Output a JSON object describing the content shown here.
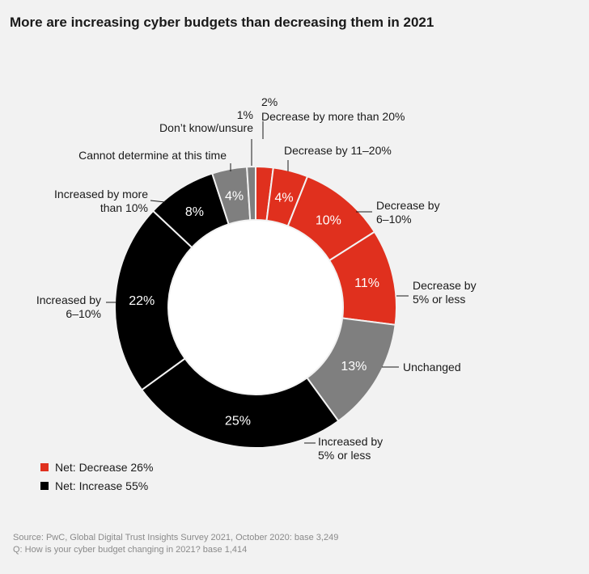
{
  "title": "More are increasing cyber budgets than decreasing them in 2021",
  "chart_data": {
    "type": "donut",
    "unit": "%",
    "slices": [
      {
        "value_label": "2%",
        "value": 2,
        "color": "#e0301e",
        "label_lines": [
          "2%",
          "Decrease by more than 20%"
        ],
        "show_value_in_slice": false
      },
      {
        "value_label": "4%",
        "value": 4,
        "color": "#e0301e",
        "label_lines": [
          "Decrease by 11–20%"
        ],
        "show_value_in_slice": true
      },
      {
        "value_label": "10%",
        "value": 10,
        "color": "#e0301e",
        "label_lines": [
          "Decrease by",
          "6–10%"
        ],
        "show_value_in_slice": true
      },
      {
        "value_label": "11%",
        "value": 11,
        "color": "#e0301e",
        "label_lines": [
          "Decrease by",
          "5% or less"
        ],
        "show_value_in_slice": true
      },
      {
        "value_label": "13%",
        "value": 13,
        "color": "#7f7f7f",
        "label_lines": [
          "Unchanged"
        ],
        "show_value_in_slice": true
      },
      {
        "value_label": "25%",
        "value": 25,
        "color": "#000000",
        "label_lines": [
          "Increased by",
          "5% or less"
        ],
        "show_value_in_slice": true
      },
      {
        "value_label": "22%",
        "value": 22,
        "color": "#000000",
        "label_lines": [
          "Increased by",
          "6–10%"
        ],
        "show_value_in_slice": true
      },
      {
        "value_label": "8%",
        "value": 8,
        "color": "#000000",
        "label_lines": [
          "Increased by more",
          "than 10%"
        ],
        "show_value_in_slice": true
      },
      {
        "value_label": "4%",
        "value": 4,
        "color": "#7f7f7f",
        "label_lines": [
          "Cannot determine at this time"
        ],
        "show_value_in_slice": true
      },
      {
        "value_label": "1%",
        "value": 1,
        "color": "#7f7f7f",
        "label_lines": [
          "1%",
          "Don’t know/unsure"
        ],
        "show_value_in_slice": false
      }
    ],
    "legend": [
      {
        "label": "Net: Decrease 26%",
        "color": "#e0301e"
      },
      {
        "label": "Net: Increase 55%",
        "color": "#000000"
      }
    ]
  },
  "source_lines": [
    "Source: PwC, Global Digital Trust Insights Survey 2021, October 2020: base 3,249",
    "Q: How is your cyber budget changing in 2021? base 1,414"
  ]
}
